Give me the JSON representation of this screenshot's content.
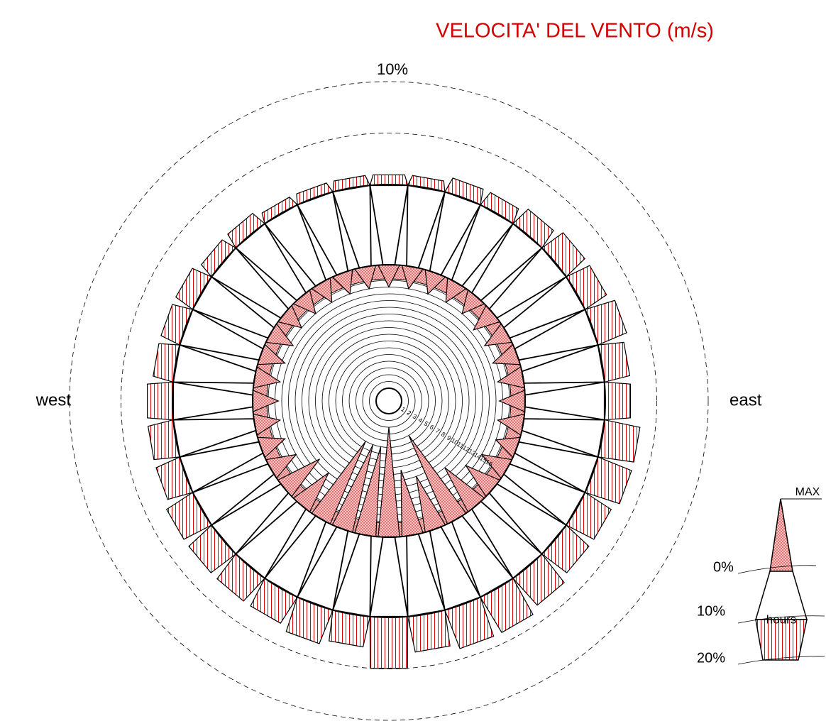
{
  "chart_data": {
    "type": "windrose",
    "title": "VELOCITA' DEL VENTO (m/s)",
    "west": "west",
    "east": "east",
    "x": [
      0,
      10,
      20,
      30,
      40,
      50,
      60,
      70,
      80,
      90,
      100,
      110,
      120,
      130,
      140,
      150,
      160,
      170,
      180,
      190,
      200,
      210,
      220,
      230,
      240,
      250,
      260,
      270,
      280,
      290,
      300,
      310,
      320,
      330,
      340,
      350
    ],
    "max_speed": [
      15,
      15,
      15,
      15,
      15,
      14.5,
      14.5,
      14.5,
      14.5,
      14.5,
      14.5,
      15,
      14,
      13,
      11,
      4,
      10,
      8.5,
      2,
      5,
      5,
      5,
      12,
      11.5,
      14,
      14.5,
      14.5,
      14.5,
      14.5,
      14.5,
      14.5,
      15,
      15,
      15,
      15,
      15
    ],
    "hours": [
      1,
      1,
      1.5,
      1.5,
      2,
      2.5,
      2.5,
      3,
      2.5,
      2.5,
      3.5,
      3.5,
      3,
      3,
      3.5,
      4,
      4,
      3.5,
      5,
      3,
      3.5,
      3,
      3,
      3,
      3,
      2.5,
      2.5,
      2.5,
      2,
      2,
      2,
      1.5,
      1.5,
      1,
      1,
      1
    ],
    "speed_ticks": [
      1,
      2,
      3,
      4,
      5,
      6,
      7,
      8,
      9,
      10,
      11,
      12,
      13,
      14,
      15,
      16
    ],
    "hours_ticks": [
      {
        "value": 5,
        "label": null
      },
      {
        "value": 10,
        "label": "10%"
      }
    ],
    "legend": {
      "max": "MAX",
      "levels": [
        "0%",
        "10%",
        "20%"
      ],
      "hours": "hours"
    }
  }
}
